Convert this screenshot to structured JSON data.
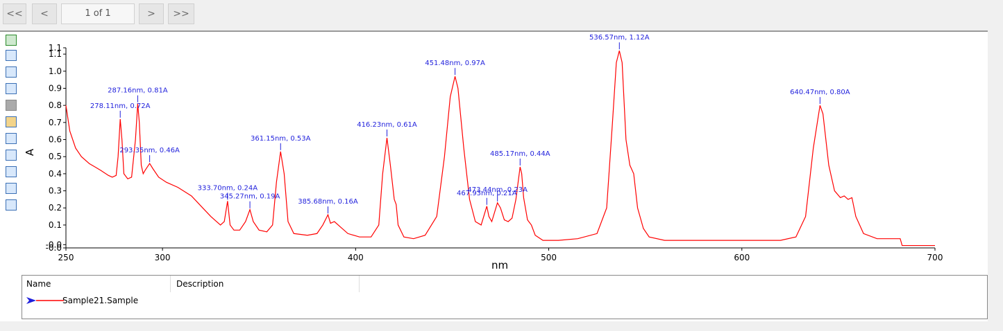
{
  "toolbar": {
    "first": "<<",
    "previous": "<",
    "page": "1 of 1",
    "next": ">",
    "last": ">>"
  },
  "chart_data": {
    "type": "line",
    "xlabel": "nm",
    "ylabel": "A",
    "xlim": [
      250,
      700
    ],
    "xticks": [
      250,
      300,
      400,
      500,
      600,
      700
    ],
    "ylim": [
      -0.034,
      1.137
    ],
    "yticks": [
      {
        "value": -0.034,
        "label": "-0.0"
      },
      {
        "value": -0.015,
        "label": "-0.0"
      },
      0.1,
      0.2,
      0.3,
      0.4,
      0.5,
      0.6,
      0.7,
      0.8,
      0.9,
      {
        "value": 1.0,
        "label": "1.0"
      },
      1.1,
      {
        "value": 1.137,
        "label": "1.1"
      }
    ],
    "x": [
      250,
      252,
      255,
      258,
      262,
      265,
      268,
      272,
      274,
      276,
      277,
      278.11,
      279,
      280,
      282,
      284,
      286,
      287.16,
      288,
      289,
      290,
      291,
      293.35,
      295,
      298,
      302,
      308,
      315,
      320,
      325,
      330,
      332,
      333.7,
      335,
      337,
      340,
      343,
      345.27,
      347,
      350,
      354,
      357,
      359,
      361.15,
      363,
      365,
      368,
      375,
      380,
      383,
      385.68,
      387,
      389,
      392,
      396,
      402,
      408,
      412,
      414,
      416.23,
      418,
      420,
      421,
      422,
      425,
      430,
      436,
      442,
      446,
      449,
      451.48,
      453,
      456,
      459,
      462,
      465,
      467.93,
      469,
      470.5,
      473.44,
      475,
      477,
      479,
      481,
      483,
      485.17,
      486,
      487,
      489,
      491,
      493,
      497,
      505,
      515,
      525,
      530,
      533,
      535,
      536.57,
      538,
      540,
      542,
      544,
      546,
      549,
      552,
      560,
      580,
      600,
      620,
      628,
      633,
      637,
      640.47,
      642,
      645,
      648,
      651,
      653,
      655,
      657,
      659,
      663,
      670,
      682,
      683,
      690,
      700
    ],
    "series": [
      {
        "name": "Sample21.Sample",
        "color": "#ff0000",
        "values": [
          0.8,
          0.65,
          0.55,
          0.5,
          0.46,
          0.44,
          0.42,
          0.39,
          0.38,
          0.39,
          0.5,
          0.72,
          0.6,
          0.4,
          0.37,
          0.38,
          0.6,
          0.81,
          0.7,
          0.45,
          0.4,
          0.42,
          0.46,
          0.43,
          0.38,
          0.35,
          0.32,
          0.27,
          0.21,
          0.15,
          0.1,
          0.12,
          0.24,
          0.1,
          0.07,
          0.07,
          0.12,
          0.19,
          0.12,
          0.07,
          0.06,
          0.1,
          0.35,
          0.53,
          0.4,
          0.12,
          0.05,
          0.04,
          0.05,
          0.1,
          0.16,
          0.11,
          0.12,
          0.09,
          0.05,
          0.03,
          0.03,
          0.1,
          0.4,
          0.61,
          0.45,
          0.25,
          0.22,
          0.1,
          0.03,
          0.02,
          0.04,
          0.15,
          0.5,
          0.85,
          0.97,
          0.9,
          0.55,
          0.25,
          0.12,
          0.1,
          0.21,
          0.15,
          0.12,
          0.23,
          0.2,
          0.13,
          0.12,
          0.14,
          0.25,
          0.44,
          0.4,
          0.26,
          0.13,
          0.1,
          0.04,
          0.01,
          0.01,
          0.02,
          0.05,
          0.2,
          0.7,
          1.05,
          1.12,
          1.05,
          0.6,
          0.45,
          0.4,
          0.2,
          0.08,
          0.03,
          0.01,
          0.01,
          0.01,
          0.01,
          0.03,
          0.15,
          0.55,
          0.8,
          0.75,
          0.45,
          0.3,
          0.26,
          0.27,
          0.25,
          0.26,
          0.15,
          0.05,
          0.02,
          0.02,
          -0.02,
          -0.02,
          -0.02
        ]
      }
    ],
    "annotations": [
      {
        "label": "278.11nm, 0.72A",
        "x": 278.11,
        "y": 0.72
      },
      {
        "label": "287.16nm, 0.81A",
        "x": 287.16,
        "y": 0.81
      },
      {
        "label": "293.35nm, 0.46A",
        "x": 293.35,
        "y": 0.46
      },
      {
        "label": "333.70nm, 0.24A",
        "x": 333.7,
        "y": 0.24
      },
      {
        "label": "345.27nm, 0.19A",
        "x": 345.27,
        "y": 0.19
      },
      {
        "label": "361.15nm, 0.53A",
        "x": 361.15,
        "y": 0.53
      },
      {
        "label": "385.68nm, 0.16A",
        "x": 385.68,
        "y": 0.16
      },
      {
        "label": "416.23nm, 0.61A",
        "x": 416.23,
        "y": 0.61
      },
      {
        "label": "451.48nm, 0.97A",
        "x": 451.48,
        "y": 0.97
      },
      {
        "label": "467.93nm, 0.21A",
        "x": 467.93,
        "y": 0.21
      },
      {
        "label": "473.44nm, 0.23A",
        "x": 473.44,
        "y": 0.23
      },
      {
        "label": "485.17nm, 0.44A",
        "x": 485.17,
        "y": 0.44
      },
      {
        "label": "536.57nm, 1.12A",
        "x": 536.57,
        "y": 1.12
      },
      {
        "label": "640.47nm, 0.80A",
        "x": 640.47,
        "y": 0.8
      }
    ],
    "annotation_color": "#1f1fdc"
  },
  "legend_table": {
    "columns": [
      "Name",
      "Description"
    ]
  }
}
